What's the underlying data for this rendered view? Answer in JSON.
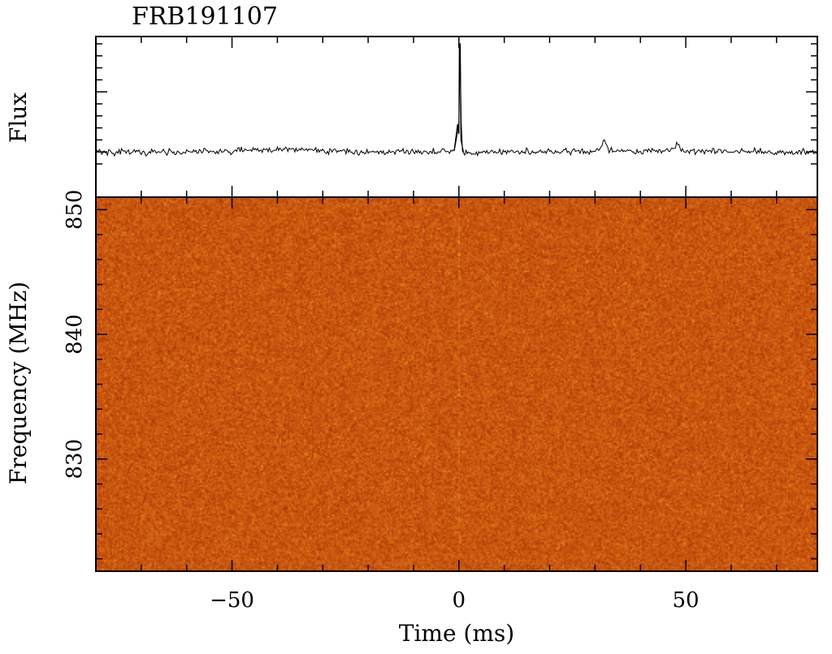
{
  "chart_data": {
    "type": "line+heatmap",
    "title": "FRB191107",
    "top_panel": {
      "type": "line",
      "ylabel": "Flux",
      "x_range_ms": [
        -80,
        79
      ],
      "series": [
        {
          "x": [
            -80,
            -60,
            -40,
            -20,
            -5,
            -1,
            0,
            0.3,
            0.6,
            1,
            5,
            20,
            31,
            32,
            33,
            40,
            47,
            48,
            49,
            60,
            79
          ],
          "y": [
            0.1,
            0.1,
            0.12,
            0.1,
            0.1,
            0.11,
            0.33,
            1.0,
            0.12,
            0.09,
            0.1,
            0.1,
            0.11,
            0.2,
            0.11,
            0.1,
            0.11,
            0.18,
            0.11,
            0.1,
            0.1
          ]
        }
      ]
    },
    "bottom_panel": {
      "type": "heatmap",
      "xlabel": "Time (ms)",
      "ylabel": "Frequency (MHz)",
      "xlim": [
        -80,
        79
      ],
      "ylim": [
        821,
        851
      ],
      "x_ticks": [
        -50,
        0,
        50
      ],
      "y_ticks": [
        830,
        840,
        850
      ],
      "x_tick_labels": [
        "−50",
        "0",
        "50"
      ],
      "y_tick_labels": [
        "830",
        "840",
        "850"
      ],
      "colormap_colors": [
        "#8f2606",
        "#b8420a",
        "#d86a14",
        "#f1a528"
      ],
      "burst_time_ms": 0
    }
  }
}
